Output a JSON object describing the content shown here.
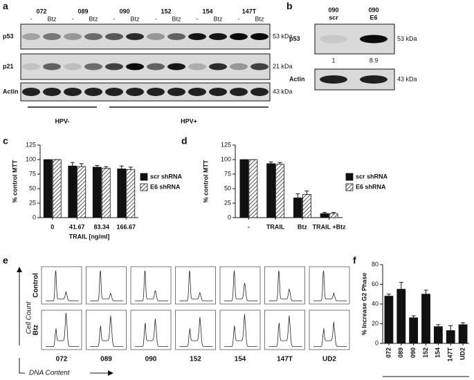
{
  "panels": {
    "a": {
      "label": "a",
      "cell_lines": [
        "072",
        "089",
        "090",
        "152",
        "154",
        "147T"
      ],
      "treatments": [
        "-",
        "Btz"
      ],
      "rows": [
        {
          "name": "p53",
          "size": "53 kDa"
        },
        {
          "name": "p21",
          "size": "21 kDa"
        },
        {
          "name": "Actin",
          "size": "43 kDa"
        }
      ],
      "groups": [
        "HPV-",
        "HPV+"
      ]
    },
    "b": {
      "label": "b",
      "lanes": [
        {
          "line": "090",
          "condition": "scr",
          "quantification": 1
        },
        {
          "line": "090",
          "condition": "E6",
          "quantification": 8.9
        }
      ],
      "rows": [
        {
          "name": "p53",
          "size": "53 kDa"
        },
        {
          "name": "Actin",
          "size": "43 kDa"
        }
      ]
    },
    "e": {
      "label": "e",
      "conditions": [
        "Control",
        "Btz"
      ],
      "cell_lines": [
        "072",
        "089",
        "090",
        "152",
        "154",
        "147T",
        "UD2"
      ],
      "y_axis": "Cell Count",
      "x_axis": "DNA Content"
    }
  },
  "chart_data": [
    {
      "type": "bar",
      "panel": "c",
      "ylabel": "% control MTT",
      "xlabel": "TRAIL [ng/ml]",
      "categories": [
        "0",
        "41.67",
        "83.34",
        "166.67"
      ],
      "ylim": [
        0,
        125
      ],
      "yticks": [
        0,
        25,
        50,
        75,
        100,
        125
      ],
      "series": [
        {
          "name": "scr shRNA",
          "color": "#111111",
          "values": [
            100,
            89,
            87,
            84
          ],
          "errors": [
            0,
            6,
            3,
            5
          ]
        },
        {
          "name": "E6 shRNA",
          "color": "#ffffff",
          "hatch": true,
          "values": [
            100,
            88,
            85,
            83
          ],
          "errors": [
            0,
            5,
            3,
            4
          ]
        }
      ],
      "legend": "right"
    },
    {
      "type": "bar",
      "panel": "d",
      "ylabel": "% control MTT",
      "categories": [
        "-",
        "TRAIL",
        "Btz",
        "TRAIL +Btz"
      ],
      "ylim": [
        0,
        125
      ],
      "yticks": [
        0,
        25,
        50,
        75,
        100,
        125
      ],
      "series": [
        {
          "name": "scr shRNA",
          "color": "#111111",
          "values": [
            100,
            93,
            34,
            7
          ],
          "errors": [
            0,
            3,
            7,
            2
          ]
        },
        {
          "name": "E6 shRNA",
          "color": "#ffffff",
          "hatch": true,
          "values": [
            100,
            92,
            40,
            7
          ],
          "errors": [
            0,
            3,
            6,
            2
          ]
        }
      ],
      "legend": "right"
    },
    {
      "type": "bar",
      "panel": "f",
      "ylabel": "% Increase G2 Phase",
      "categories": [
        "072",
        "089",
        "090",
        "152",
        "154",
        "147T",
        "UD2"
      ],
      "ylim": [
        0,
        80
      ],
      "yticks": [
        0,
        20,
        40,
        60,
        80
      ],
      "values": [
        48,
        55,
        26,
        50,
        17,
        13,
        19
      ],
      "errors": [
        2,
        7,
        2,
        4,
        2,
        5,
        2
      ],
      "color": "#111111"
    }
  ]
}
